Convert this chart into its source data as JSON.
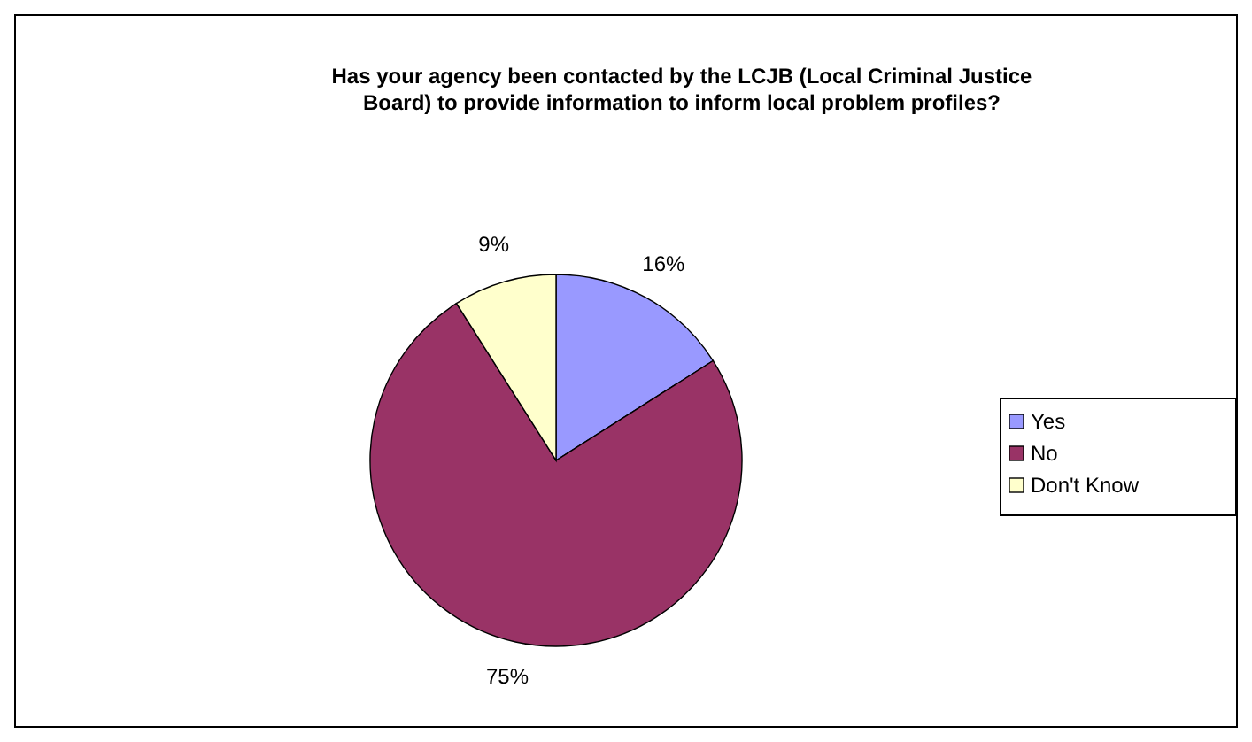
{
  "chart_data": {
    "type": "pie",
    "title": "Has your agency been contacted by the LCJB (Local Criminal Justice Board) to provide information to inform local problem profiles?",
    "categories": [
      "Yes",
      "No",
      "Don't Know"
    ],
    "values": [
      16,
      75,
      9
    ],
    "colors": [
      "#9999ff",
      "#993366",
      "#ffffcc"
    ],
    "value_labels": [
      "16%",
      "75%",
      "9%"
    ],
    "legend": "right"
  }
}
